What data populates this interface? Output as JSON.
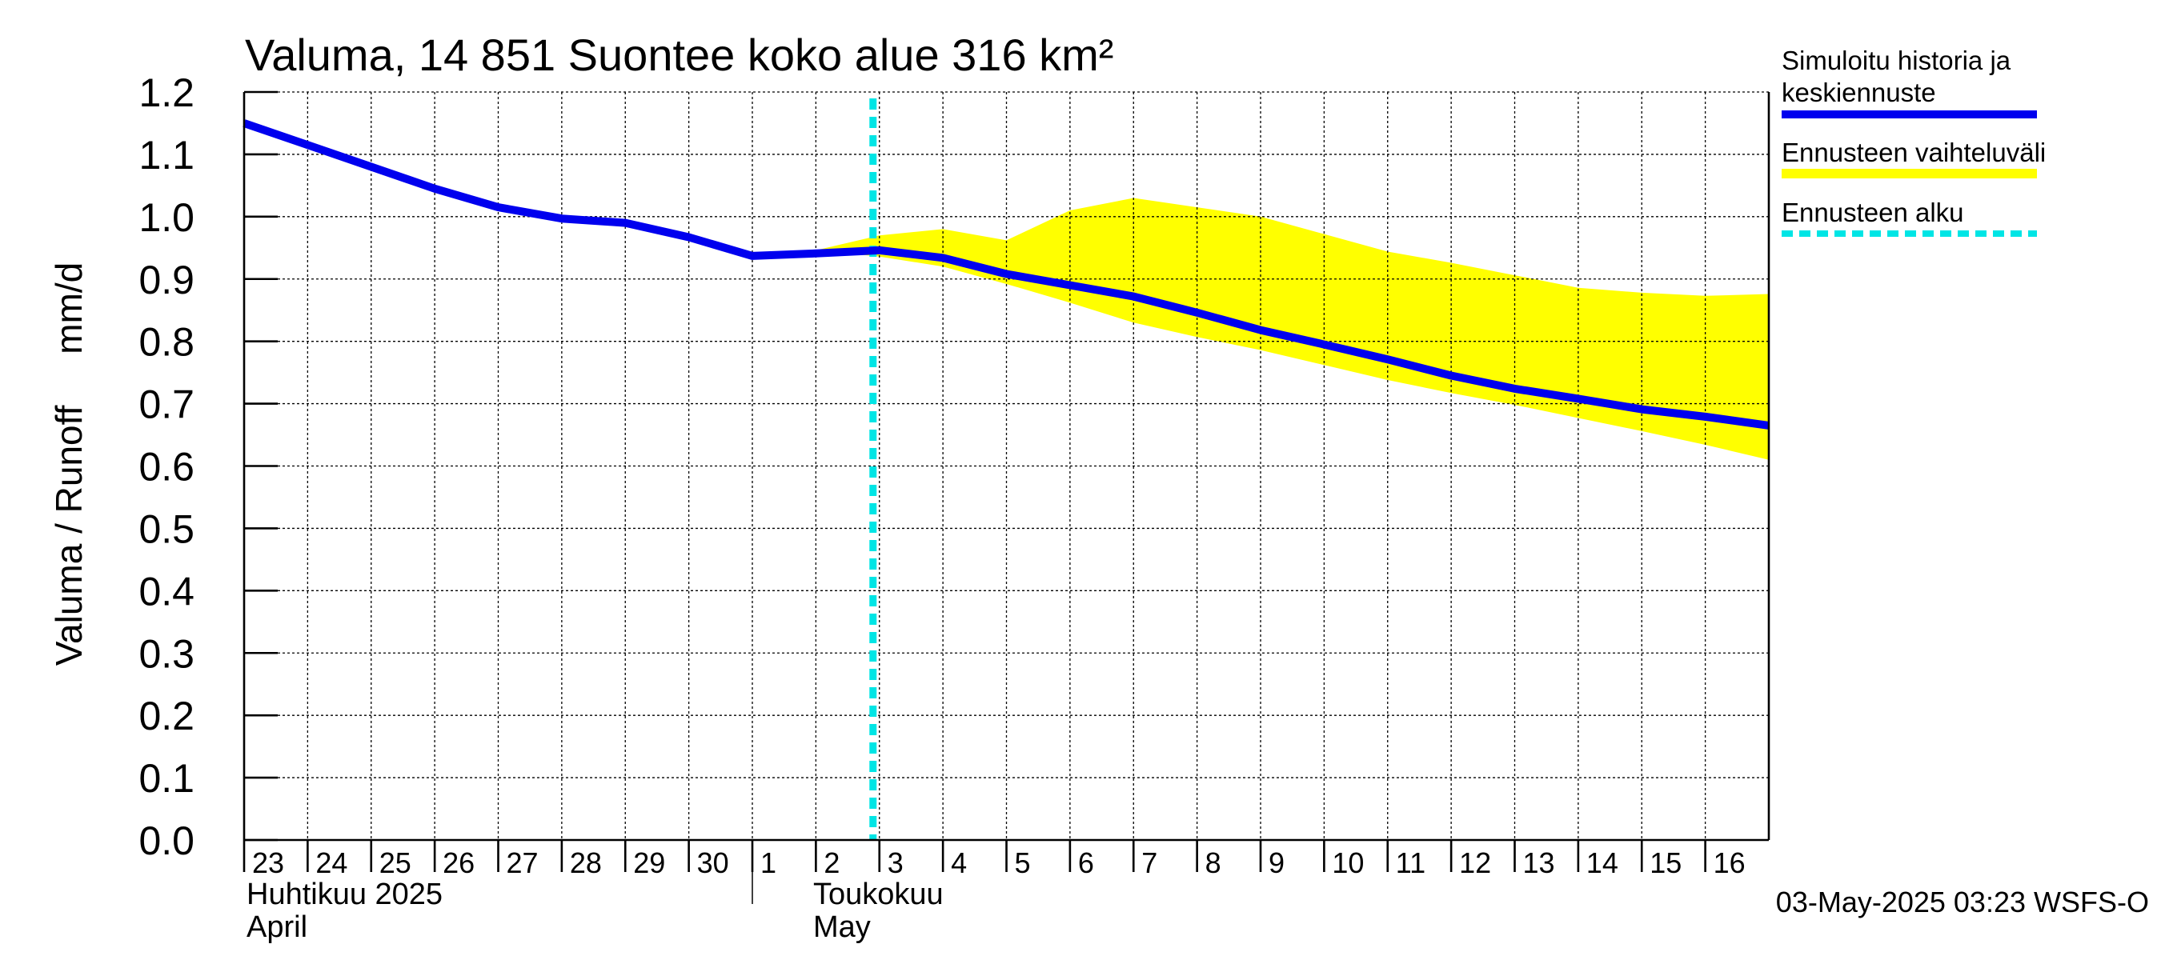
{
  "chart_data": {
    "type": "line",
    "title": "Valuma, 14 851 Suontee koko alue 316 km²",
    "ylabel": "Valuma / Runoff     mm/d",
    "ylim": [
      0,
      1.2
    ],
    "yticks": [
      "0.0",
      "0.1",
      "0.2",
      "0.3",
      "0.4",
      "0.5",
      "0.6",
      "0.7",
      "0.8",
      "0.9",
      "1.0",
      "1.1",
      "1.2"
    ],
    "x_day_labels": [
      "23",
      "24",
      "25",
      "26",
      "27",
      "28",
      "29",
      "30",
      "1",
      "2",
      "3",
      "4",
      "5",
      "6",
      "7",
      "8",
      "9",
      "10",
      "11",
      "12",
      "13",
      "14",
      "15",
      "16"
    ],
    "month_labels": [
      {
        "line1": "Huhtikuu  2025",
        "line2": "April"
      },
      {
        "line1": "Toukokuu",
        "line2": "May"
      }
    ],
    "forecast_start_day_index": 10,
    "series": [
      {
        "name": "Simuloitu historia ja keskiennuste",
        "color": "#0000ee",
        "x": [
          0,
          1,
          2,
          3,
          4,
          5,
          6,
          7,
          8,
          9,
          10,
          11,
          12,
          13,
          14,
          15,
          16,
          17,
          18,
          19,
          20,
          21,
          22,
          23,
          24
        ],
        "values": [
          1.15,
          1.115,
          1.08,
          1.045,
          1.015,
          0.997,
          0.99,
          0.967,
          0.937,
          0.941,
          0.946,
          0.934,
          0.908,
          0.89,
          0.872,
          0.846,
          0.818,
          0.795,
          0.771,
          0.745,
          0.724,
          0.708,
          0.691,
          0.679,
          0.665
        ]
      }
    ],
    "band": {
      "name": "Ennusteen vaihteluväli",
      "color": "#ffff00",
      "x": [
        9,
        10,
        11,
        12,
        13,
        14,
        15,
        16,
        17,
        18,
        19,
        20,
        21,
        22,
        23,
        24
      ],
      "upper": [
        0.946,
        0.97,
        0.98,
        0.962,
        1.01,
        1.03,
        1.015,
        1.0,
        0.972,
        0.944,
        0.926,
        0.906,
        0.886,
        0.878,
        0.873,
        0.876
      ],
      "lower": [
        0.946,
        0.936,
        0.92,
        0.892,
        0.862,
        0.83,
        0.807,
        0.786,
        0.762,
        0.738,
        0.717,
        0.698,
        0.677,
        0.656,
        0.634,
        0.61
      ]
    },
    "legend": [
      {
        "label_lines": [
          "Simuloitu historia ja",
          "keskiennuste"
        ],
        "color": "#0000ee",
        "style": "solid"
      },
      {
        "label_lines": [
          "Ennusteen vaihteluväli"
        ],
        "color": "#ffff00",
        "style": "solid"
      },
      {
        "label_lines": [
          "Ennusteen alku"
        ],
        "color": "#00e5e5",
        "style": "dashed"
      }
    ],
    "legend_position": "right",
    "grid": true,
    "footer": "03-May-2025 03:23 WSFS-O"
  }
}
